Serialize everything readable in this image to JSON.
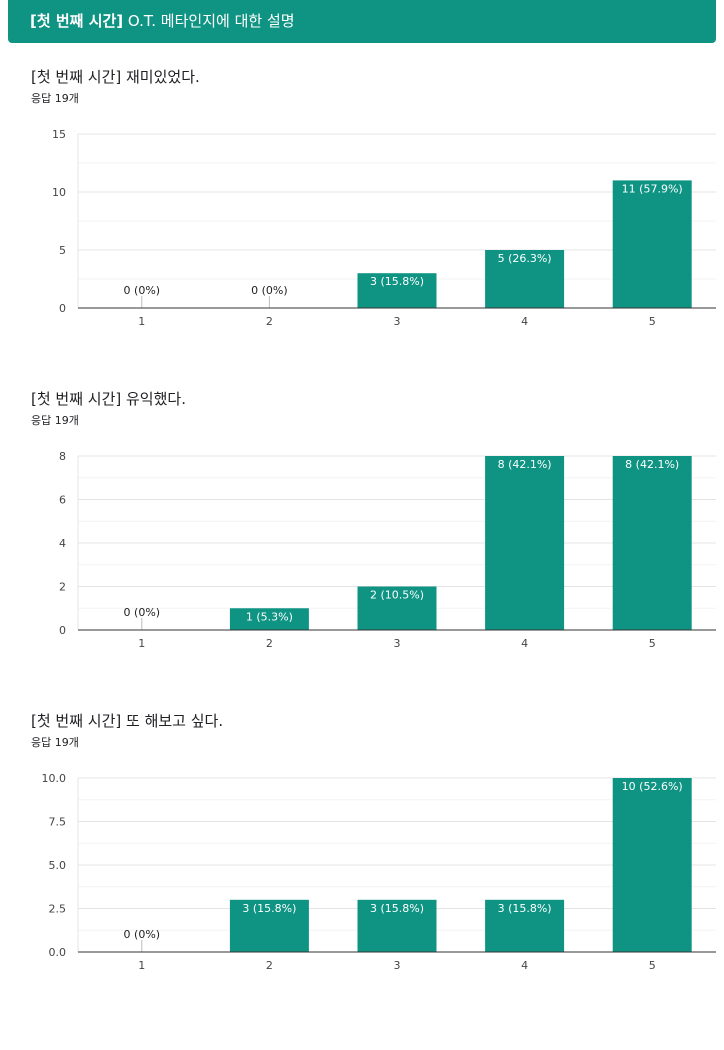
{
  "header": {
    "title_bold": "[첫 번째 시간]",
    "title_rest": " O.T. 메타인지에 대한 설명"
  },
  "colors": {
    "accent": "#0f9484",
    "bar": "#0f9484"
  },
  "chart_data": [
    {
      "type": "bar",
      "title": "[첫 번째 시간] 재미있었다.",
      "subtitle": "응답 19개",
      "categories": [
        "1",
        "2",
        "3",
        "4",
        "5"
      ],
      "values": [
        0,
        0,
        3,
        5,
        11
      ],
      "data_labels": [
        "0 (0%)",
        "0 (0%)",
        "3 (15.8%)",
        "5 (26.3%)",
        "11 (57.9%)"
      ],
      "ylim": [
        0,
        15
      ],
      "yticks": [
        0,
        5,
        10,
        15
      ],
      "ytick_labels": [
        "0",
        "5",
        "10",
        "15"
      ],
      "grid": true
    },
    {
      "type": "bar",
      "title": "[첫 번째 시간] 유익했다.",
      "subtitle": "응답 19개",
      "categories": [
        "1",
        "2",
        "3",
        "4",
        "5"
      ],
      "values": [
        0,
        1,
        2,
        8,
        8
      ],
      "data_labels": [
        "0 (0%)",
        "1 (5.3%)",
        "2 (10.5%)",
        "8 (42.1%)",
        "8 (42.1%)"
      ],
      "ylim": [
        0,
        8
      ],
      "yticks": [
        0,
        2,
        4,
        6,
        8
      ],
      "ytick_labels": [
        "0",
        "2",
        "4",
        "6",
        "8"
      ],
      "grid": true
    },
    {
      "type": "bar",
      "title": "[첫 번째 시간] 또 해보고 싶다.",
      "subtitle": "응답 19개",
      "categories": [
        "1",
        "2",
        "3",
        "4",
        "5"
      ],
      "values": [
        0,
        3,
        3,
        3,
        10
      ],
      "data_labels": [
        "0 (0%)",
        "3 (15.8%)",
        "3 (15.8%)",
        "3 (15.8%)",
        "10 (52.6%)"
      ],
      "ylim": [
        0,
        10
      ],
      "yticks": [
        0,
        2.5,
        5,
        7.5,
        10
      ],
      "ytick_labels": [
        "0.0",
        "2.5",
        "5.0",
        "7.5",
        "10.0"
      ],
      "grid": true
    }
  ]
}
